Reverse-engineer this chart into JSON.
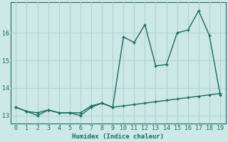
{
  "title": "",
  "xlabel": "Humidex (Indice chaleur)",
  "x_values": [
    0,
    1,
    2,
    3,
    4,
    5,
    6,
    7,
    8,
    9,
    10,
    11,
    12,
    13,
    14,
    15,
    16,
    17,
    18,
    19
  ],
  "y_line1": [
    13.3,
    13.15,
    13.1,
    13.2,
    13.1,
    13.1,
    13.1,
    13.35,
    13.45,
    13.3,
    13.35,
    13.4,
    13.45,
    13.5,
    13.55,
    13.6,
    13.65,
    13.7,
    13.75,
    13.8
  ],
  "y_line2": [
    13.3,
    13.15,
    13.0,
    13.2,
    13.1,
    13.1,
    13.0,
    13.3,
    13.45,
    13.3,
    15.85,
    15.65,
    16.3,
    14.8,
    14.85,
    16.0,
    16.1,
    16.8,
    15.9,
    13.75
  ],
  "line_color": "#1a6b5a",
  "bg_color": "#cce8e7",
  "grid_color": "#afd4d4",
  "ylim": [
    12.7,
    17.1
  ],
  "xlim": [
    -0.5,
    19.5
  ],
  "yticks": [
    13,
    14,
    15,
    16
  ],
  "xticks": [
    0,
    1,
    2,
    3,
    4,
    5,
    6,
    7,
    8,
    9,
    10,
    11,
    12,
    13,
    14,
    15,
    16,
    17,
    18,
    19
  ],
  "marker": "+",
  "linewidth": 1.0,
  "markersize": 3.5,
  "tick_fontsize": 6.0,
  "xlabel_fontsize": 6.5
}
